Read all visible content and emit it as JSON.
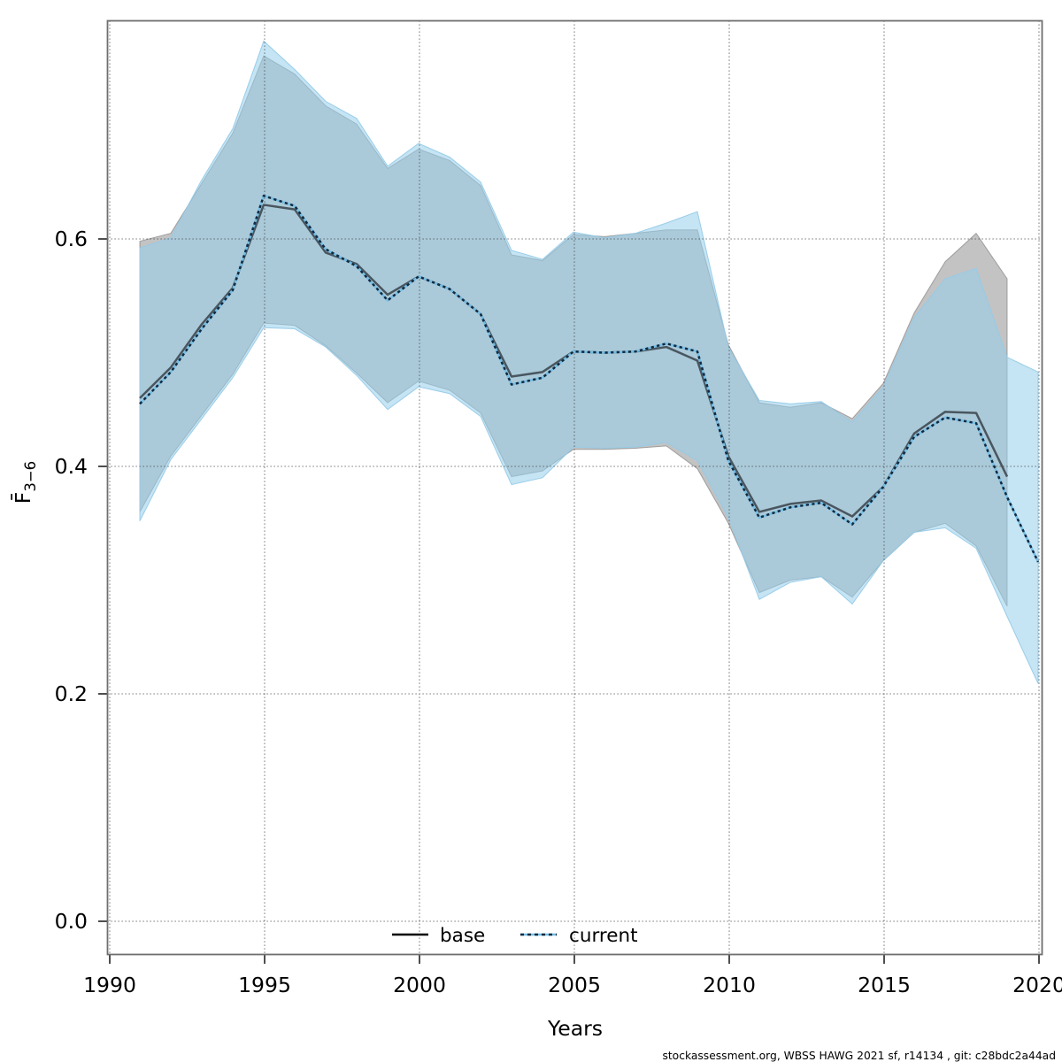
{
  "page": {
    "background": "#ffffff"
  },
  "chart_data": {
    "type": "line",
    "title": "",
    "xlabel": "Years",
    "ylabel_main": "F̄",
    "ylabel_sub": "3−6",
    "x_ticks": [
      1990,
      1995,
      2000,
      2005,
      2010,
      2015,
      2020
    ],
    "y_tick_values": [
      0.0,
      0.2,
      0.4,
      0.6
    ],
    "y_tick_decimals": 1,
    "xlim": [
      1989.97,
      2020.11
    ],
    "ylim": [
      -0.029,
      0.791
    ],
    "grid": "dotted",
    "legend_position": "bottom-center-inside",
    "series": [
      {
        "name": "base",
        "line_style": "solid",
        "line_color": "#49565f",
        "legend_color": "#000000",
        "band_fill": "rgba(128,128,128,0.47)",
        "band_edge": "rgba(125,125,125,0.65)",
        "years": [
          1991,
          1992,
          1993,
          1994,
          1995,
          1996,
          1997,
          1998,
          1999,
          2000,
          2001,
          2002,
          2003,
          2004,
          2005,
          2006,
          2007,
          2008,
          2009,
          2010,
          2011,
          2012,
          2013,
          2014,
          2015,
          2016,
          2017,
          2018,
          2019
        ],
        "values": [
          0.46,
          0.487,
          0.525,
          0.557,
          0.63,
          0.626,
          0.588,
          0.578,
          0.551,
          0.567,
          0.556,
          0.534,
          0.479,
          0.483,
          0.501,
          0.5,
          0.501,
          0.505,
          0.493,
          0.409,
          0.36,
          0.367,
          0.37,
          0.356,
          0.382,
          0.429,
          0.448,
          0.447,
          0.391
        ],
        "lo": [
          0.36,
          0.409,
          0.445,
          0.481,
          0.526,
          0.524,
          0.506,
          0.482,
          0.456,
          0.475,
          0.467,
          0.447,
          0.391,
          0.396,
          0.415,
          0.415,
          0.416,
          0.418,
          0.398,
          0.35,
          0.289,
          0.3,
          0.303,
          0.285,
          0.317,
          0.342,
          0.35,
          0.33,
          0.277
        ],
        "hi": [
          0.598,
          0.605,
          0.649,
          0.693,
          0.761,
          0.745,
          0.717,
          0.701,
          0.662,
          0.679,
          0.669,
          0.647,
          0.586,
          0.581,
          0.604,
          0.602,
          0.605,
          0.608,
          0.608,
          0.507,
          0.456,
          0.452,
          0.456,
          0.442,
          0.473,
          0.535,
          0.58,
          0.605,
          0.565
        ]
      },
      {
        "name": "current",
        "line_style": "dotted",
        "line_color_under": "#74bee6",
        "line_color_dash": "#102a3f",
        "band_fill": "rgba(150,205,235,0.55)",
        "band_edge": "rgba(150,203,232,0.95)",
        "years": [
          1991,
          1992,
          1993,
          1994,
          1995,
          1996,
          1997,
          1998,
          1999,
          2000,
          2001,
          2002,
          2003,
          2004,
          2005,
          2006,
          2007,
          2008,
          2009,
          2010,
          2011,
          2012,
          2013,
          2014,
          2015,
          2016,
          2017,
          2018,
          2019,
          2020
        ],
        "values": [
          0.455,
          0.483,
          0.521,
          0.555,
          0.638,
          0.629,
          0.591,
          0.576,
          0.546,
          0.567,
          0.556,
          0.534,
          0.472,
          0.478,
          0.501,
          0.5,
          0.501,
          0.508,
          0.501,
          0.405,
          0.355,
          0.364,
          0.368,
          0.349,
          0.382,
          0.426,
          0.443,
          0.438,
          0.373,
          0.316
        ],
        "lo": [
          0.352,
          0.406,
          0.442,
          0.478,
          0.522,
          0.521,
          0.505,
          0.48,
          0.45,
          0.47,
          0.464,
          0.444,
          0.384,
          0.39,
          0.417,
          0.416,
          0.417,
          0.421,
          0.405,
          0.355,
          0.283,
          0.298,
          0.303,
          0.279,
          0.317,
          0.342,
          0.346,
          0.328,
          0.268,
          0.209
        ],
        "hi": [
          0.592,
          0.601,
          0.652,
          0.697,
          0.774,
          0.749,
          0.721,
          0.706,
          0.664,
          0.684,
          0.672,
          0.65,
          0.59,
          0.582,
          0.606,
          0.601,
          0.605,
          0.614,
          0.624,
          0.505,
          0.458,
          0.455,
          0.457,
          0.439,
          0.47,
          0.531,
          0.565,
          0.574,
          0.496,
          0.483
        ]
      }
    ],
    "legend": [
      {
        "label": "base"
      },
      {
        "label": "current"
      }
    ],
    "footer": "stockassessment.org, WBSS HAWG 2021 sf, r14134 , git: c28bdc2a44ad"
  }
}
